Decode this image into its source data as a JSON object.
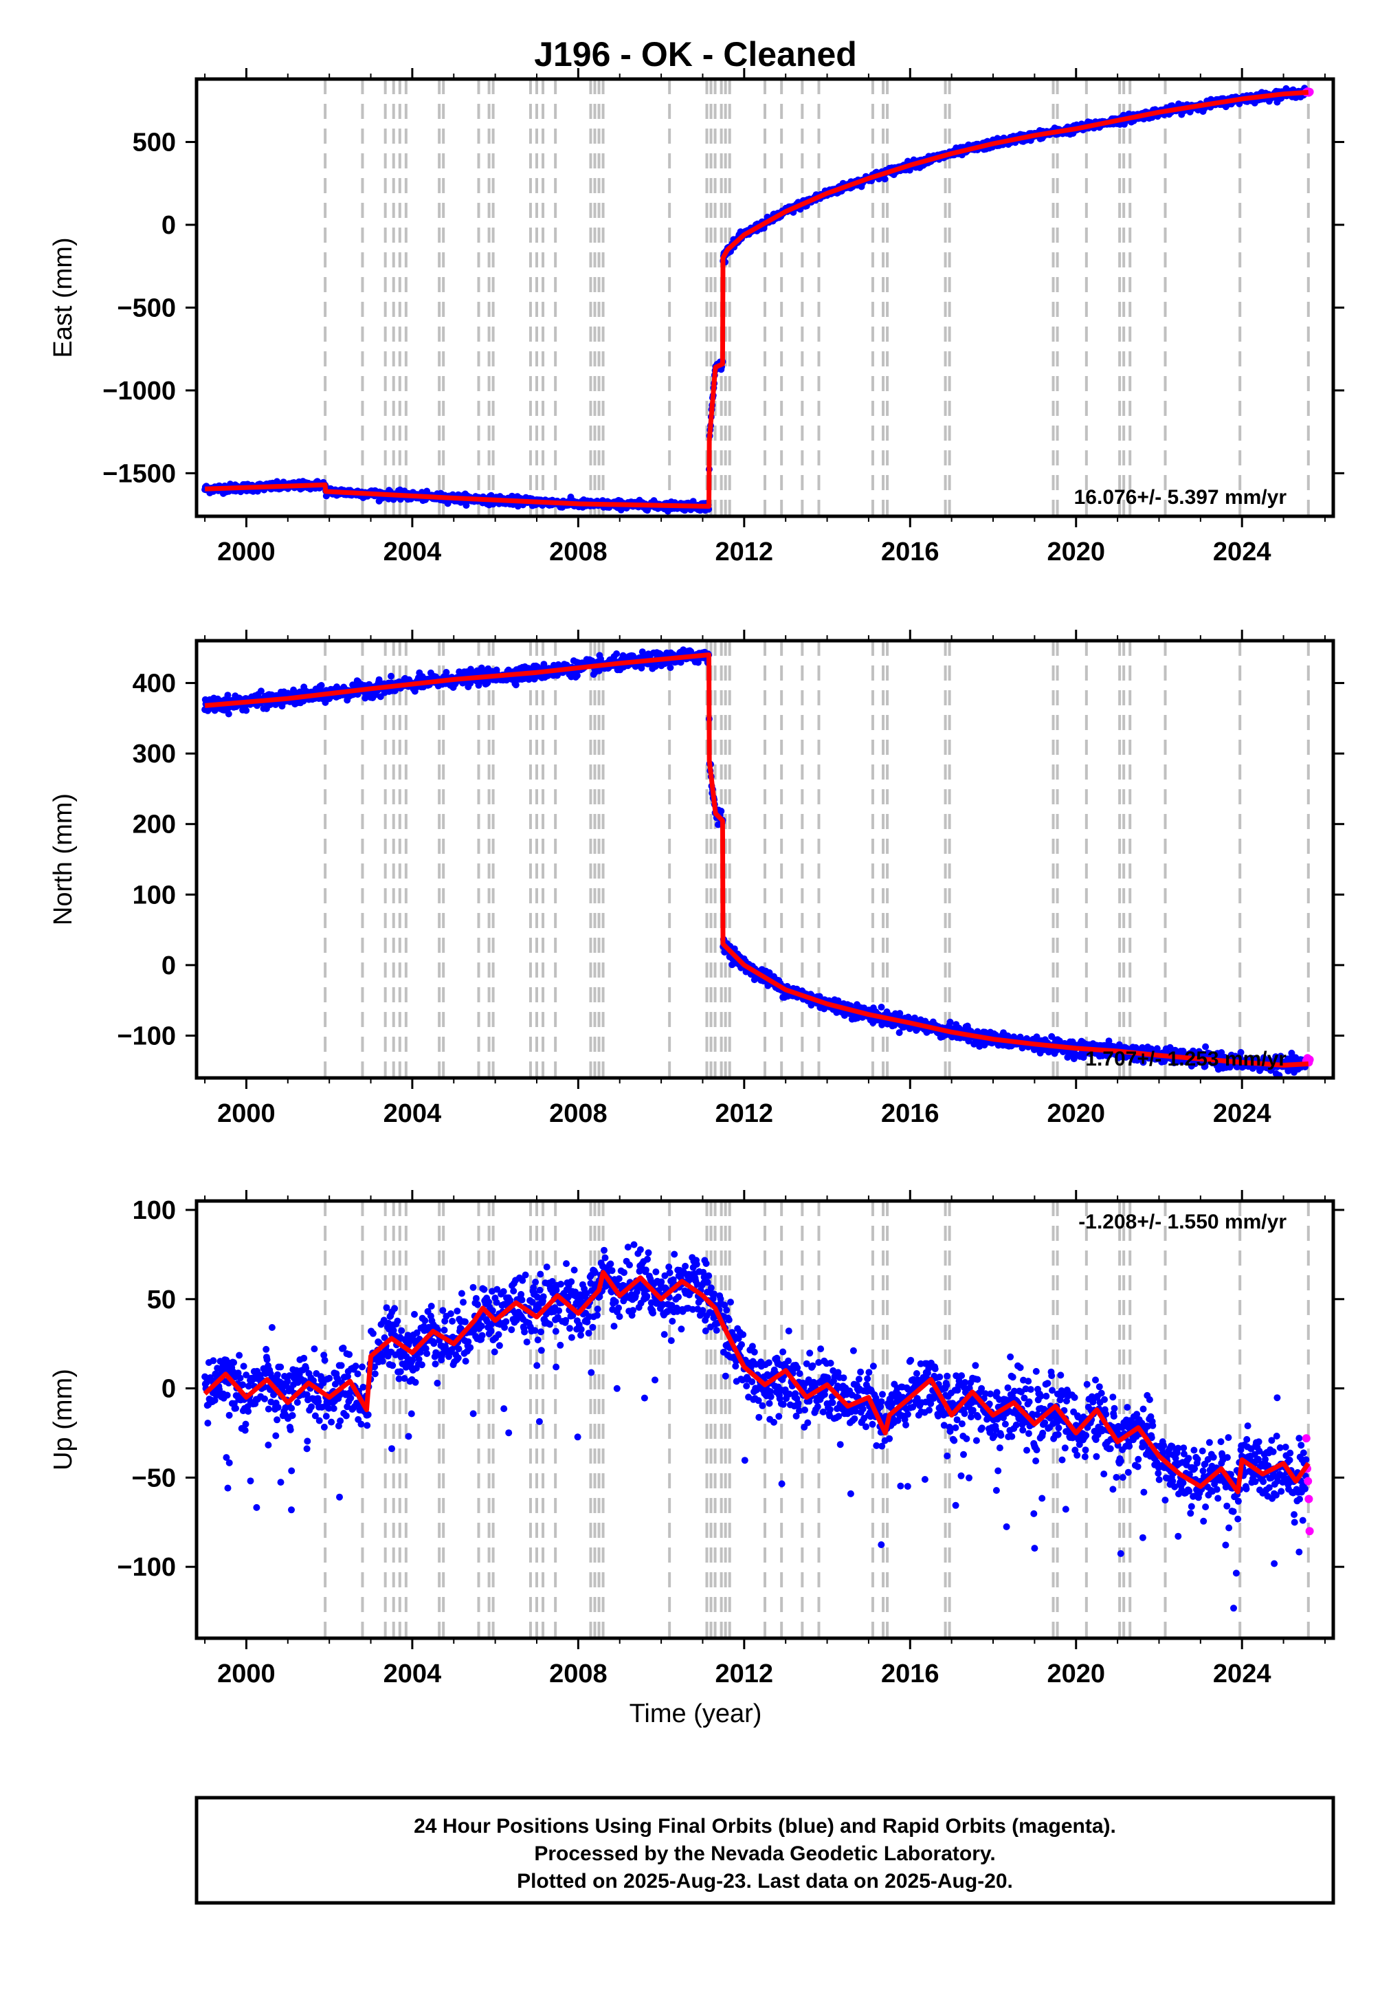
{
  "title": "J196  - OK - Cleaned",
  "xlabel": "Time (year)",
  "footer": {
    "line1": "24 Hour Positions Using Final Orbits (blue) and Rapid Orbits (magenta).",
    "line2": "Processed by the Nevada Geodetic Laboratory.",
    "line3": "Plotted on 2025-Aug-23. Last data on 2025-Aug-20."
  },
  "colors": {
    "final_points": "#0000ff",
    "rapid_points": "#ff00ff",
    "model_line": "#ff0000",
    "event_lines": "#c0c0c0"
  },
  "chart_data": [
    {
      "type": "scatter",
      "component": "east",
      "ylabel": "East (mm)",
      "rate_text": "16.076+/- 5.397 mm/yr",
      "xlim": [
        1998.8,
        2026.2
      ],
      "ylim": [
        -1760,
        880
      ],
      "xticks": [
        2000,
        2004,
        2008,
        2012,
        2016,
        2020,
        2024
      ],
      "yticks": [
        -1500,
        -1000,
        -500,
        0,
        500
      ],
      "ytick_labels": [
        "−1500",
        "−1000",
        "−500",
        "0",
        "500"
      ],
      "noise_mm": 12,
      "series": [
        {
          "role": "model",
          "x": [
            1999.0,
            2001.9,
            2001.91,
            2005.0,
            2008.0,
            2011.15,
            2011.16,
            2011.3,
            2011.31,
            2011.48,
            2011.49,
            2011.6,
            2012.0,
            2013.0,
            2014.0,
            2015.0,
            2016.0,
            2017.0,
            2018.0,
            2019.0,
            2020.0,
            2021.0,
            2022.0,
            2023.0,
            2024.0,
            2025.0,
            2025.6
          ],
          "y": [
            -1595,
            -1570,
            -1610,
            -1650,
            -1685,
            -1700,
            -1300,
            -880,
            -860,
            -840,
            -200,
            -150,
            -60,
            80,
            190,
            280,
            360,
            430,
            490,
            540,
            580,
            630,
            680,
            720,
            760,
            790,
            800
          ]
        }
      ],
      "rapid": {
        "x": [
          2025.55,
          2025.58,
          2025.61,
          2025.63
        ],
        "y": [
          800,
          805,
          798,
          802
        ]
      }
    },
    {
      "type": "scatter",
      "component": "north",
      "ylabel": "North (mm)",
      "rate_text": "1.707+/- 1.253 mm/yr",
      "xlim": [
        1998.8,
        2026.2
      ],
      "ylim": [
        -160,
        460
      ],
      "xticks": [
        2000,
        2004,
        2008,
        2012,
        2016,
        2020,
        2024
      ],
      "yticks": [
        -100,
        0,
        100,
        200,
        300,
        400
      ],
      "ytick_labels": [
        "−100",
        "0",
        "100",
        "200",
        "300",
        "400"
      ],
      "noise_mm": 5,
      "series": [
        {
          "role": "model",
          "x": [
            1999.0,
            2001.0,
            2003.0,
            2005.0,
            2007.0,
            2009.0,
            2011.15,
            2011.16,
            2011.3,
            2011.31,
            2011.48,
            2011.49,
            2012.0,
            2013.0,
            2014.0,
            2015.0,
            2016.0,
            2017.0,
            2018.0,
            2019.0,
            2020.0,
            2021.0,
            2022.0,
            2023.0,
            2024.0,
            2025.0,
            2025.6
          ],
          "y": [
            368,
            378,
            392,
            405,
            415,
            428,
            440,
            290,
            220,
            215,
            205,
            30,
            0,
            -35,
            -55,
            -70,
            -82,
            -95,
            -105,
            -112,
            -118,
            -122,
            -128,
            -133,
            -138,
            -142,
            -140
          ]
        }
      ],
      "rapid": {
        "x": [
          2025.55,
          2025.58,
          2025.61,
          2025.63
        ],
        "y": [
          -136,
          -132,
          -138,
          -134
        ]
      }
    },
    {
      "type": "scatter",
      "component": "up",
      "ylabel": "Up (mm)",
      "rate_text": "-1.208+/- 1.550 mm/yr",
      "xlim": [
        1998.8,
        2026.2
      ],
      "ylim": [
        -140,
        105
      ],
      "xticks": [
        2000,
        2004,
        2008,
        2012,
        2016,
        2020,
        2024
      ],
      "yticks": [
        -100,
        -50,
        0,
        50,
        100
      ],
      "ytick_labels": [
        "−100",
        "−50",
        "0",
        "50",
        "100"
      ],
      "noise_mm": 9,
      "series": [
        {
          "role": "model",
          "x": [
            1999.0,
            1999.5,
            2000.0,
            2000.5,
            2001.0,
            2001.5,
            2002.0,
            2002.5,
            2002.9,
            2003.0,
            2003.5,
            2004.0,
            2004.5,
            2005.0,
            2005.5,
            2005.7,
            2006.0,
            2006.5,
            2007.0,
            2007.5,
            2008.0,
            2008.5,
            2008.6,
            2009.0,
            2009.5,
            2010.0,
            2010.5,
            2011.0,
            2011.3,
            2011.5,
            2012.0,
            2012.5,
            2013.0,
            2013.5,
            2014.0,
            2014.5,
            2015.0,
            2015.4,
            2015.5,
            2016.0,
            2016.5,
            2017.0,
            2017.5,
            2018.0,
            2018.5,
            2019.0,
            2019.5,
            2020.0,
            2020.5,
            2021.0,
            2021.5,
            2022.0,
            2022.5,
            2023.0,
            2023.5,
            2023.9,
            2024.0,
            2024.5,
            2025.0,
            2025.3,
            2025.6
          ],
          "y": [
            -3,
            8,
            -5,
            5,
            -8,
            3,
            -5,
            4,
            -12,
            18,
            28,
            20,
            32,
            25,
            38,
            45,
            38,
            48,
            40,
            52,
            42,
            55,
            65,
            52,
            62,
            50,
            60,
            52,
            45,
            35,
            12,
            2,
            10,
            -5,
            2,
            -10,
            -5,
            -25,
            -15,
            -5,
            5,
            -15,
            -2,
            -15,
            -8,
            -20,
            -10,
            -25,
            -12,
            -30,
            -22,
            -38,
            -48,
            -55,
            -45,
            -58,
            -40,
            -48,
            -42,
            -52,
            -42
          ]
        }
      ],
      "rapid": {
        "x": [
          2025.55,
          2025.57,
          2025.59,
          2025.61,
          2025.63
        ],
        "y": [
          -28,
          -45,
          -52,
          -62,
          -80
        ]
      }
    }
  ],
  "event_lines_x": [
    2001.9,
    2002.8,
    2003.35,
    2003.55,
    2003.7,
    2003.85,
    2004.65,
    2004.75,
    2005.6,
    2005.85,
    2005.95,
    2006.85,
    2007.0,
    2007.15,
    2007.45,
    2008.3,
    2008.4,
    2008.5,
    2008.6,
    2010.2,
    2011.1,
    2011.2,
    2011.3,
    2011.45,
    2011.55,
    2011.65,
    2012.5,
    2012.9,
    2013.4,
    2013.8,
    2015.1,
    2015.35,
    2015.45,
    2016.85,
    2016.95,
    2019.45,
    2019.55,
    2020.25,
    2021.05,
    2021.15,
    2021.3,
    2022.15,
    2023.95,
    2025.6
  ]
}
